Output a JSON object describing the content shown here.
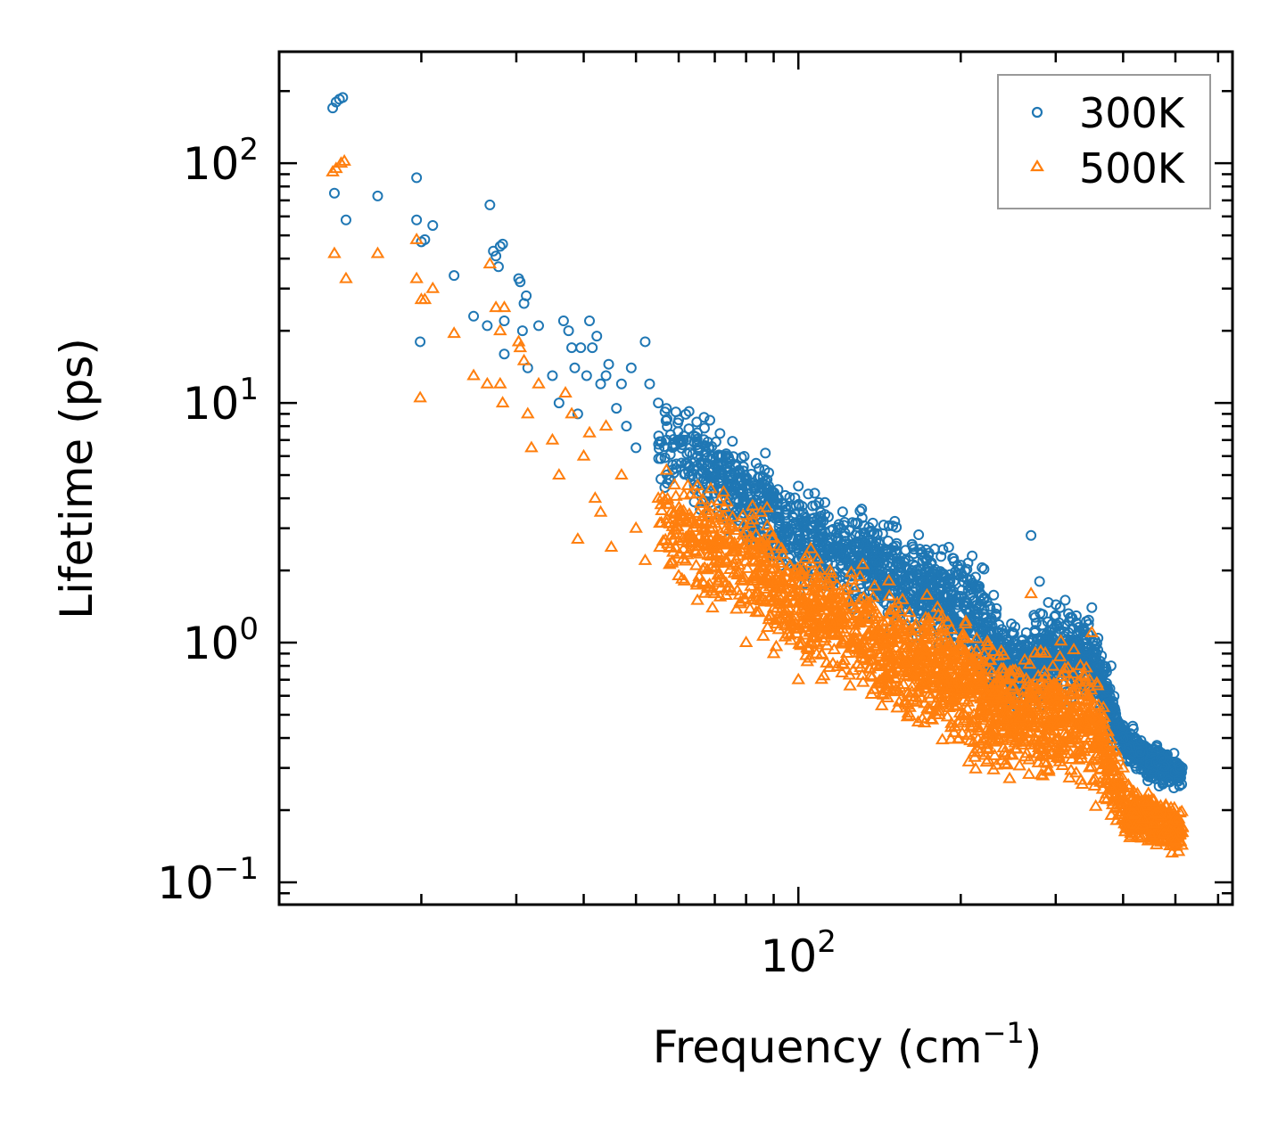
{
  "chart_data": {
    "type": "scatter",
    "title": "",
    "xlabel": "Frequency (cm",
    "xlabel_sup": "−1",
    "xlabel_end": ")",
    "ylabel": "Lifetime (ps)",
    "xscale": "log",
    "yscale": "log",
    "xlim": [
      10.9,
      638
    ],
    "ylim": [
      0.0807,
      292
    ],
    "x_ticks": [
      {
        "value": 100,
        "base": "10",
        "exp": "2"
      }
    ],
    "y_ticks": [
      {
        "value": 0.1,
        "base": "10",
        "exp": "−1"
      },
      {
        "value": 1,
        "base": "10",
        "exp": "0"
      },
      {
        "value": 10,
        "base": "10",
        "exp": "1"
      },
      {
        "value": 100,
        "base": "10",
        "exp": "2"
      }
    ],
    "legend_position": "top-right",
    "series": [
      {
        "name": "300K",
        "marker": "circle",
        "color": "#1f77b4",
        "points": [
          [
            13.7,
            170
          ],
          [
            13.9,
            180
          ],
          [
            14.1,
            185
          ],
          [
            14.3,
            188
          ],
          [
            13.8,
            75
          ],
          [
            14.5,
            58
          ],
          [
            16.6,
            73
          ],
          [
            19.6,
            87
          ],
          [
            19.6,
            58
          ],
          [
            20,
            47
          ],
          [
            20.3,
            48
          ],
          [
            21,
            55
          ],
          [
            19.9,
            18
          ],
          [
            23,
            34
          ],
          [
            25,
            23
          ],
          [
            26.5,
            21
          ],
          [
            26.8,
            67
          ],
          [
            27.2,
            43
          ],
          [
            27.5,
            41
          ],
          [
            27.8,
            37
          ],
          [
            28,
            45
          ],
          [
            28.3,
            46
          ],
          [
            28.5,
            22
          ],
          [
            28.5,
            16
          ],
          [
            30.3,
            33
          ],
          [
            30.5,
            32
          ],
          [
            31,
            26
          ],
          [
            31.3,
            28
          ],
          [
            30.8,
            20
          ],
          [
            31.5,
            14
          ],
          [
            33,
            21
          ],
          [
            35,
            13
          ],
          [
            36,
            10
          ],
          [
            36.7,
            22
          ],
          [
            37.5,
            20
          ],
          [
            38,
            17
          ],
          [
            38.5,
            14
          ],
          [
            39,
            9
          ],
          [
            39.5,
            17
          ],
          [
            40.5,
            13
          ],
          [
            41,
            22
          ],
          [
            41.5,
            17
          ],
          [
            42.3,
            19
          ],
          [
            43,
            12
          ],
          [
            44,
            13
          ],
          [
            44.5,
            14.5
          ],
          [
            46,
            9.5
          ],
          [
            47,
            12
          ],
          [
            48,
            8
          ],
          [
            49,
            14
          ],
          [
            50,
            6.5
          ],
          [
            52,
            18
          ],
          [
            53,
            12
          ],
          [
            55,
            10
          ],
          [
            57,
            7
          ],
          [
            60,
            8.5
          ],
          [
            62,
            7
          ],
          [
            65,
            6
          ],
          [
            70,
            5.5
          ],
          [
            75,
            5
          ],
          [
            80,
            4.5
          ],
          [
            90,
            4
          ],
          [
            100,
            4.5
          ],
          [
            110,
            3.5
          ],
          [
            120,
            3
          ],
          [
            130,
            2.8
          ],
          [
            150,
            2.5
          ],
          [
            170,
            2.2
          ],
          [
            190,
            2.5
          ],
          [
            210,
            2.3
          ],
          [
            220,
            1.2
          ],
          [
            230,
            1.0
          ],
          [
            250,
            1.1
          ],
          [
            270,
            2.8
          ],
          [
            280,
            1.8
          ],
          [
            300,
            1.3
          ],
          [
            330,
            1.1
          ],
          [
            350,
            1.4
          ],
          [
            380,
            0.8
          ],
          [
            400,
            0.45
          ],
          [
            430,
            0.35
          ],
          [
            470,
            0.33
          ],
          [
            510,
            0.3
          ]
        ],
        "band": {
          "freq": [
            55,
            80,
            100,
            150,
            200,
            220,
            250,
            300,
            350,
            400,
            450,
            515
          ],
          "upper": [
            12,
            8,
            5,
            3.5,
            2.6,
            2.4,
            1.2,
            1.8,
            1.4,
            0.5,
            0.4,
            0.35
          ],
          "lower": [
            4,
            2.2,
            1.5,
            1.0,
            0.8,
            0.5,
            0.5,
            0.5,
            0.5,
            0.3,
            0.25,
            0.24
          ]
        }
      },
      {
        "name": "500K",
        "marker": "triangle",
        "color": "#ff7f0e",
        "points": [
          [
            13.7,
            92
          ],
          [
            13.9,
            95
          ],
          [
            14.2,
            100
          ],
          [
            14.4,
            102
          ],
          [
            13.8,
            42
          ],
          [
            14.5,
            33
          ],
          [
            16.6,
            42
          ],
          [
            19.6,
            48
          ],
          [
            19.6,
            33
          ],
          [
            20,
            27
          ],
          [
            20.3,
            27
          ],
          [
            21,
            30
          ],
          [
            19.9,
            10.5
          ],
          [
            23,
            19.5
          ],
          [
            25,
            13
          ],
          [
            26.5,
            12
          ],
          [
            26.8,
            38
          ],
          [
            27.5,
            25
          ],
          [
            28,
            20
          ],
          [
            28.5,
            25
          ],
          [
            28.3,
            10
          ],
          [
            28,
            12
          ],
          [
            30.3,
            18
          ],
          [
            30.5,
            17
          ],
          [
            31,
            15
          ],
          [
            31.5,
            9
          ],
          [
            32,
            6.5
          ],
          [
            33,
            12
          ],
          [
            35,
            7
          ],
          [
            36,
            5
          ],
          [
            37,
            11
          ],
          [
            38,
            9
          ],
          [
            39,
            2.7
          ],
          [
            40,
            6
          ],
          [
            41,
            7.5
          ],
          [
            42,
            4
          ],
          [
            43,
            3.5
          ],
          [
            44,
            8
          ],
          [
            45,
            2.5
          ],
          [
            47,
            5
          ],
          [
            50,
            3
          ],
          [
            52,
            2.2
          ],
          [
            55,
            4
          ],
          [
            58,
            2.5
          ],
          [
            60,
            1.9
          ],
          [
            65,
            1.5
          ],
          [
            70,
            1.6
          ],
          [
            80,
            1.0
          ],
          [
            90,
            0.9
          ],
          [
            100,
            0.7
          ],
          [
            270,
            1.6
          ],
          [
            350,
            1.1
          ],
          [
            400,
            0.3
          ],
          [
            500,
            0.15
          ]
        ],
        "band": {
          "freq": [
            55,
            80,
            100,
            150,
            200,
            220,
            250,
            300,
            350,
            400,
            450,
            515
          ],
          "upper": [
            6,
            4.5,
            3,
            2,
            1.5,
            1.4,
            1,
            1.1,
            1.2,
            0.3,
            0.25,
            0.22
          ],
          "lower": [
            1.8,
            1.0,
            0.7,
            0.45,
            0.3,
            0.25,
            0.25,
            0.2,
            0.2,
            0.14,
            0.13,
            0.12
          ]
        }
      }
    ]
  }
}
